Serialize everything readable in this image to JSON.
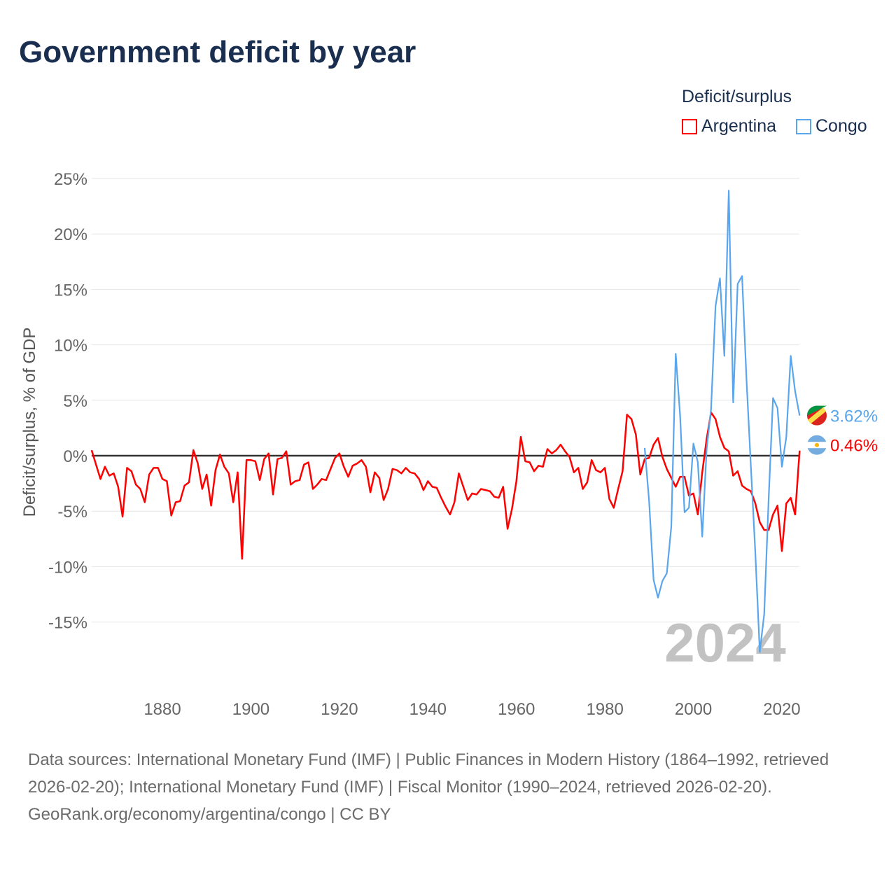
{
  "title": "Government deficit by year",
  "legend": {
    "title": "Deficit/surplus",
    "placement": "top-right"
  },
  "footer": {
    "sources": "Data sources: International Monetary Fund (IMF) | Public Finances in Modern History (1864–1992, retrieved 2026-02-20); International Monetary Fund (IMF) | Fiscal Monitor (1990–2024, retrieved 2026-02-20).",
    "credit": "GeoRank.org/economy/argentina/congo | CC BY"
  },
  "chart_data": {
    "type": "line",
    "title": "Government deficit by year",
    "xlabel": "",
    "ylabel": "Deficit/surplus, % of GDP",
    "xlim": [
      1864,
      2024
    ],
    "ylim": [
      -20,
      26
    ],
    "year_label": "2024",
    "x_ticks": [
      1880,
      1900,
      1920,
      1940,
      1960,
      1980,
      2000,
      2020
    ],
    "y_ticks": [
      25,
      20,
      15,
      10,
      5,
      0,
      -5,
      -10,
      -15
    ],
    "y_tick_labels": [
      "25%",
      "20%",
      "15%",
      "10%",
      "5%",
      "0%",
      "-5%",
      "-10%",
      "-15%"
    ],
    "grid": true,
    "series": [
      {
        "name": "Argentina",
        "color": "#ff0000",
        "end_label": "0.46%",
        "start_year": 1864,
        "values": [
          0.5,
          -0.8,
          -2.1,
          -1.0,
          -1.8,
          -1.6,
          -2.8,
          -5.5,
          -1.1,
          -1.4,
          -2.6,
          -3.0,
          -4.2,
          -1.7,
          -1.1,
          -1.1,
          -2.1,
          -2.3,
          -5.4,
          -4.2,
          -4.1,
          -2.7,
          -2.4,
          0.5,
          -0.7,
          -3.0,
          -1.7,
          -4.5,
          -1.3,
          0.1,
          -1.0,
          -1.6,
          -4.2,
          -1.5,
          -9.3,
          -0.4,
          -0.4,
          -0.5,
          -2.2,
          -0.3,
          0.2,
          -3.5,
          -0.3,
          -0.2,
          0.4,
          -2.6,
          -2.3,
          -2.2,
          -0.8,
          -0.6,
          -3.0,
          -2.6,
          -2.1,
          -2.2,
          -1.2,
          -0.2,
          0.2,
          -1.0,
          -1.9,
          -0.9,
          -0.7,
          -0.4,
          -1.0,
          -3.3,
          -1.5,
          -2.0,
          -4.0,
          -3.0,
          -1.2,
          -1.3,
          -1.6,
          -1.1,
          -1.5,
          -1.6,
          -2.1,
          -3.1,
          -2.3,
          -2.8,
          -2.9,
          -3.8,
          -4.6,
          -5.3,
          -4.2,
          -1.6,
          -2.8,
          -4.0,
          -3.4,
          -3.5,
          -3.0,
          -3.1,
          -3.2,
          -3.7,
          -3.8,
          -2.8,
          -6.6,
          -4.8,
          -2.3,
          1.7,
          -0.5,
          -0.6,
          -1.4,
          -0.9,
          -1.0,
          0.6,
          0.2,
          0.5,
          1.0,
          0.4,
          -0.1,
          -1.5,
          -1.1,
          -3.0,
          -2.4,
          -0.4,
          -1.3,
          -1.5,
          -1.1,
          -3.9,
          -4.7,
          -3.0,
          -1.4,
          3.7,
          3.3,
          1.9,
          -1.7,
          -0.3,
          -0.2,
          1.0,
          1.6,
          -0.1,
          -1.2,
          -2.0,
          -2.8,
          -1.9,
          -1.9,
          -3.6,
          -3.4,
          -5.3,
          -1.5,
          1.5,
          3.9,
          3.3,
          1.7,
          0.7,
          0.4,
          -1.8,
          -1.4,
          -2.7,
          -3.0,
          -3.2,
          -4.3,
          -6.0,
          -6.7,
          -6.7,
          -5.3,
          -4.5,
          -8.6,
          -4.3,
          -3.8,
          -5.3,
          0.46
        ]
      },
      {
        "name": "Congo",
        "color": "#5aa6ec",
        "end_label": "3.62%",
        "start_year": 1989,
        "values": [
          0.7,
          -4.1,
          -11.2,
          -12.8,
          -11.3,
          -10.6,
          -6.4,
          9.2,
          3.6,
          -5.1,
          -4.7,
          1.1,
          -0.6,
          -7.3,
          0.6,
          4.2,
          13.5,
          16.0,
          9.0,
          23.9,
          4.8,
          15.5,
          16.2,
          6.9,
          -1.0,
          -8.7,
          -17.7,
          -14.3,
          -4.0,
          5.2,
          4.3,
          -1.0,
          1.7,
          9.0,
          5.8,
          3.62
        ]
      }
    ]
  }
}
